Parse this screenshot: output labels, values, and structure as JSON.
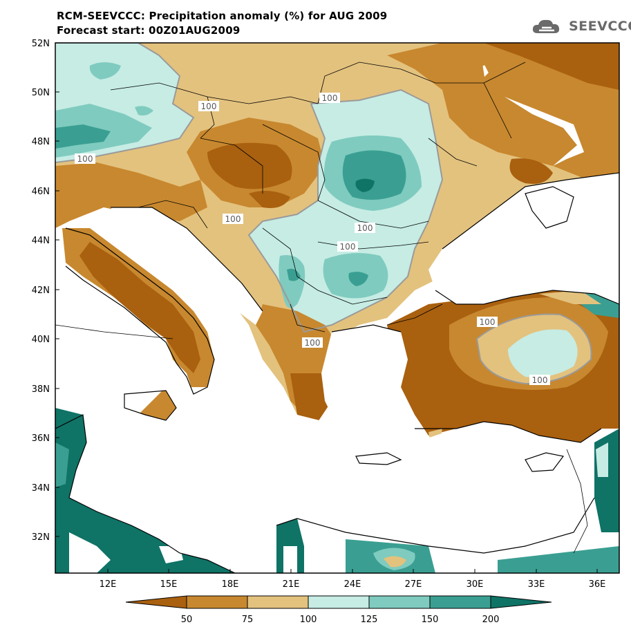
{
  "header": {
    "title": "RCM-SEEVCCC: Precipitation anomaly (%) for AUG 2009",
    "subtitle": "Forecast start: 00Z01AUG2009",
    "logo_text": "SEEVCCC"
  },
  "axes": {
    "lat_labels": [
      "52N",
      "50N",
      "48N",
      "46N",
      "44N",
      "42N",
      "40N",
      "38N",
      "36N",
      "34N",
      "32N"
    ],
    "lon_labels": [
      "12E",
      "15E",
      "18E",
      "21E",
      "24E",
      "27E",
      "30E",
      "33E",
      "36E"
    ]
  },
  "contour_labels": [
    "100",
    "100",
    "100",
    "100",
    "100",
    "100",
    "100",
    "100",
    "100"
  ],
  "colorbar": {
    "ticks": [
      "50",
      "75",
      "100",
      "125",
      "150",
      "200"
    ],
    "colors": [
      "#a9600f",
      "#c8882f",
      "#e3c27e",
      "#c6ece4",
      "#7fcbbf",
      "#3a9f92",
      "#0f7366"
    ]
  },
  "colors": {
    "dry_dark": "#a9600f",
    "dry_mid": "#c8882f",
    "dry_light": "#e3c27e",
    "wet_light": "#c6ece4",
    "wet_mid": "#7fcbbf",
    "wet_dark": "#3a9f92",
    "wet_darkest": "#0f7366",
    "sea": "#ffffff"
  }
}
